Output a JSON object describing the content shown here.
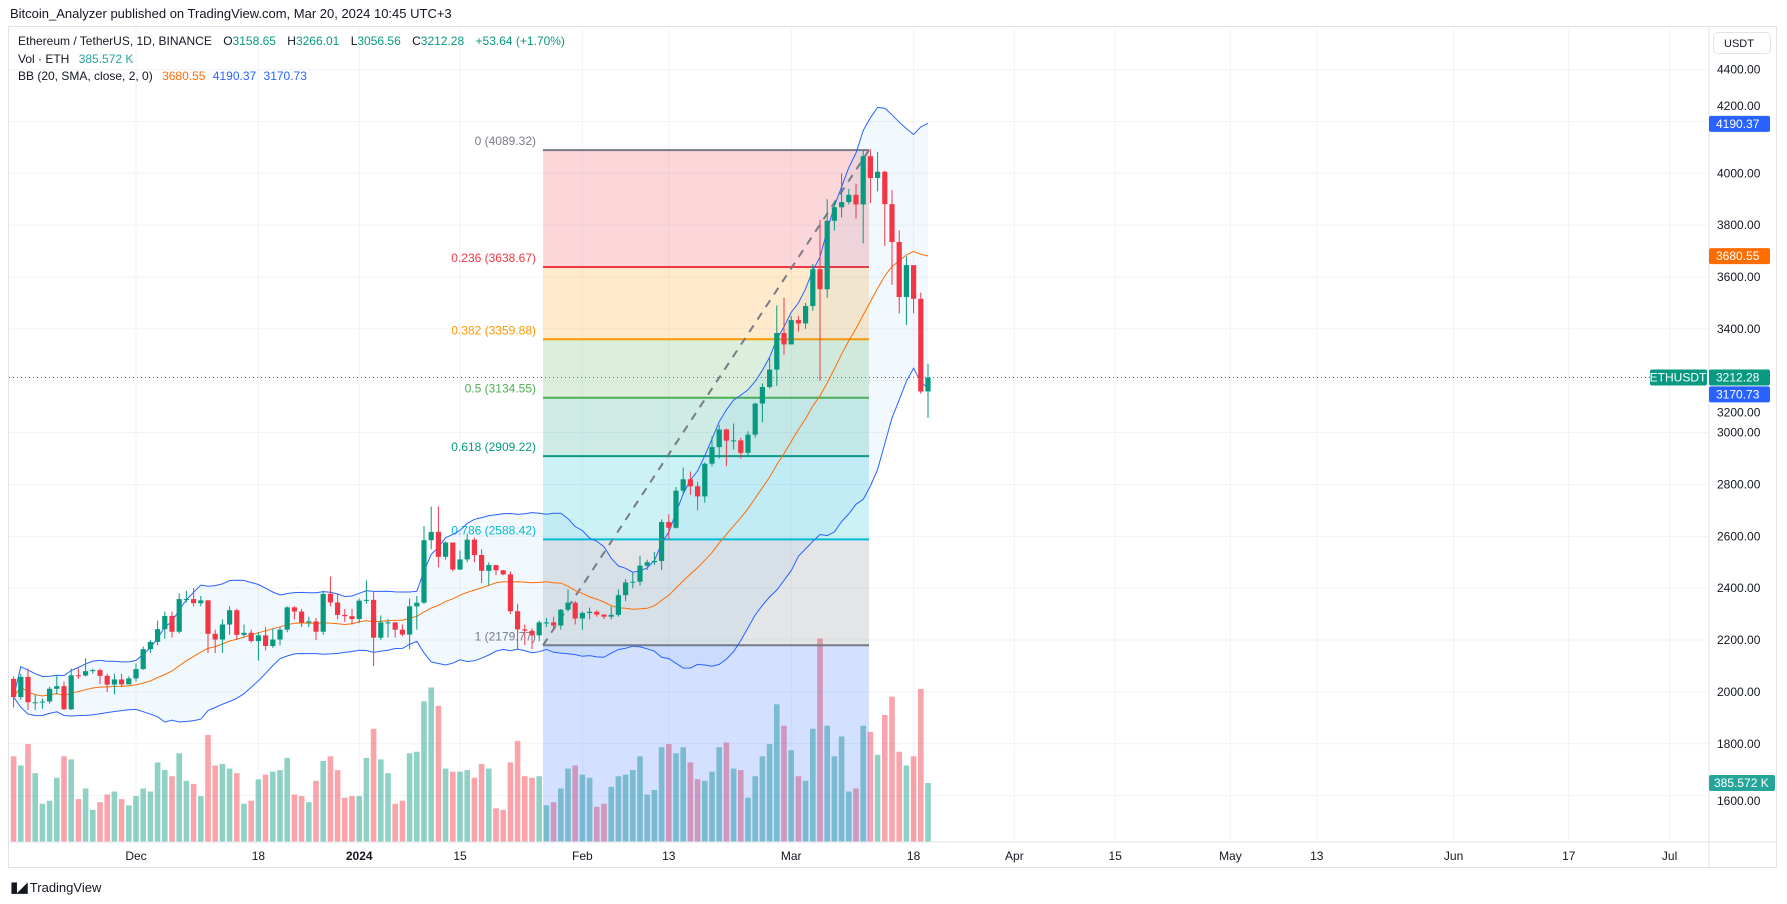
{
  "publisher": "Bitcoin_Analyzer published on TradingView.com, Mar 20, 2024 10:45 UTC+3",
  "legend": {
    "symbol": "Ethereum / TetherUS, 1D, BINANCE",
    "o_label": "O",
    "o": "3158.65",
    "h_label": "H",
    "h": "3266.01",
    "l_label": "L",
    "l": "3056.56",
    "c_label": "C",
    "c": "3212.28",
    "change": "+53.64 (+1.70%)",
    "vol_label": "Vol · ETH",
    "vol": "385.572 K",
    "bb_label": "BB (20, SMA, close, 2, 0)",
    "bb_basis": "3680.55",
    "bb_upper": "4190.37",
    "bb_lower": "3170.73"
  },
  "currency_button": "USDT",
  "footer": {
    "logo": "TV",
    "brand": "TradingView"
  },
  "colors": {
    "up": "#089981",
    "down": "#f23645",
    "bb_band": "#2962ff",
    "bb_basis": "#ff6d00",
    "vol_badge": "#26a69a"
  },
  "chart_data": {
    "type": "candlestick",
    "symbol": "ETHUSDT",
    "interval": "1D",
    "start_date": "2023-11-14",
    "first_open": 2050,
    "ylim": [
      1400,
      4480
    ],
    "y_ticks": [
      "4400.00",
      "4200.00",
      "4000.00",
      "3800.00",
      "3600.00",
      "3400.00",
      "3200.00",
      "3000.00",
      "2800.00",
      "2600.00",
      "2400.00",
      "2200.00",
      "2000.00",
      "1800.00",
      "1600.00"
    ],
    "x_ticks": [
      {
        "label": "Dec",
        "date": "2023-12-01"
      },
      {
        "label": "18",
        "date": "2023-12-18"
      },
      {
        "label": "2024",
        "date": "2024-01-01",
        "bold": true
      },
      {
        "label": "15",
        "date": "2024-01-15"
      },
      {
        "label": "Feb",
        "date": "2024-02-01"
      },
      {
        "label": "13",
        "date": "2024-02-13"
      },
      {
        "label": "Mar",
        "date": "2024-03-01"
      },
      {
        "label": "18",
        "date": "2024-03-18"
      },
      {
        "label": "Apr",
        "date": "2024-04-01"
      },
      {
        "label": "15",
        "date": "2024-04-15"
      },
      {
        "label": "May",
        "date": "2024-05-01"
      },
      {
        "label": "13",
        "date": "2024-05-13"
      },
      {
        "label": "Jun",
        "date": "2024-06-01"
      },
      {
        "label": "17",
        "date": "2024-06-17"
      },
      {
        "label": "Jul",
        "date": "2024-07-01"
      }
    ],
    "candles_hlcv": [
      [
        2060,
        1940,
        1980,
        560
      ],
      [
        2070,
        1970,
        2058,
        500
      ],
      [
        2090,
        1930,
        1960,
        640
      ],
      [
        1990,
        1930,
        1960,
        450
      ],
      [
        1975,
        1935,
        1963,
        250
      ],
      [
        2020,
        1955,
        2012,
        270
      ],
      [
        2065,
        1990,
        2022,
        420
      ],
      [
        2040,
        1930,
        1933,
        560
      ],
      [
        2090,
        1930,
        2064,
        540
      ],
      [
        2090,
        2050,
        2063,
        280
      ],
      [
        2130,
        2060,
        2080,
        350
      ],
      [
        2090,
        2070,
        2084,
        210
      ],
      [
        2090,
        2030,
        2062,
        260
      ],
      [
        2070,
        2000,
        2028,
        310
      ],
      [
        2070,
        1990,
        2048,
        330
      ],
      [
        2070,
        2020,
        2029,
        280
      ],
      [
        2060,
        2030,
        2052,
        240
      ],
      [
        2110,
        2040,
        2088,
        300
      ],
      [
        2175,
        2085,
        2165,
        350
      ],
      [
        2200,
        2150,
        2193,
        330
      ],
      [
        2275,
        2180,
        2242,
        520
      ],
      [
        2310,
        2205,
        2293,
        470
      ],
      [
        2310,
        2210,
        2232,
        430
      ],
      [
        2380,
        2225,
        2358,
        580
      ],
      [
        2390,
        2345,
        2358,
        400
      ],
      [
        2400,
        2330,
        2342,
        380
      ],
      [
        2370,
        2330,
        2353,
        300
      ],
      [
        2355,
        2150,
        2224,
        700
      ],
      [
        2240,
        2150,
        2202,
        500
      ],
      [
        2280,
        2150,
        2260,
        510
      ],
      [
        2330,
        2220,
        2315,
        480
      ],
      [
        2320,
        2200,
        2220,
        450
      ],
      [
        2260,
        2210,
        2228,
        250
      ],
      [
        2240,
        2190,
        2196,
        270
      ],
      [
        2230,
        2120,
        2218,
        410
      ],
      [
        2250,
        2160,
        2177,
        440
      ],
      [
        2245,
        2170,
        2202,
        460
      ],
      [
        2250,
        2180,
        2240,
        470
      ],
      [
        2330,
        2230,
        2326,
        550
      ],
      [
        2330,
        2280,
        2310,
        310
      ],
      [
        2320,
        2250,
        2267,
        300
      ],
      [
        2290,
        2250,
        2272,
        260
      ],
      [
        2285,
        2200,
        2232,
        400
      ],
      [
        2390,
        2220,
        2378,
        530
      ],
      [
        2445,
        2330,
        2345,
        560
      ],
      [
        2380,
        2280,
        2297,
        470
      ],
      [
        2320,
        2270,
        2292,
        290
      ],
      [
        2320,
        2260,
        2281,
        300
      ],
      [
        2360,
        2265,
        2352,
        300
      ],
      [
        2430,
        2340,
        2355,
        550
      ],
      [
        2385,
        2100,
        2209,
        740
      ],
      [
        2295,
        2200,
        2268,
        540
      ],
      [
        2280,
        2210,
        2268,
        450
      ],
      [
        2270,
        2210,
        2240,
        250
      ],
      [
        2260,
        2215,
        2221,
        270
      ],
      [
        2360,
        2165,
        2330,
        580
      ],
      [
        2370,
        2240,
        2344,
        590
      ],
      [
        2640,
        2340,
        2585,
        920
      ],
      [
        2715,
        2550,
        2617,
        1010
      ],
      [
        2715,
        2480,
        2521,
        890
      ],
      [
        2580,
        2510,
        2576,
        480
      ],
      [
        2575,
        2465,
        2472,
        460
      ],
      [
        2545,
        2470,
        2511,
        460
      ],
      [
        2610,
        2500,
        2587,
        470
      ],
      [
        2595,
        2500,
        2528,
        420
      ],
      [
        2550,
        2420,
        2467,
        510
      ],
      [
        2500,
        2410,
        2489,
        480
      ],
      [
        2490,
        2450,
        2469,
        220
      ],
      [
        2470,
        2450,
        2453,
        210
      ],
      [
        2465,
        2300,
        2311,
        520
      ],
      [
        2340,
        2165,
        2241,
        660
      ],
      [
        2260,
        2180,
        2236,
        430
      ],
      [
        2245,
        2165,
        2218,
        420
      ],
      [
        2275,
        2195,
        2268,
        430
      ],
      [
        2285,
        2250,
        2268,
        240
      ],
      [
        2290,
        2240,
        2256,
        260
      ],
      [
        2320,
        2240,
        2317,
        350
      ],
      [
        2395,
        2310,
        2344,
        480
      ],
      [
        2350,
        2260,
        2283,
        500
      ],
      [
        2310,
        2240,
        2304,
        440
      ],
      [
        2325,
        2280,
        2309,
        420
      ],
      [
        2315,
        2290,
        2298,
        230
      ],
      [
        2300,
        2280,
        2290,
        250
      ],
      [
        2330,
        2280,
        2297,
        360
      ],
      [
        2395,
        2290,
        2373,
        430
      ],
      [
        2435,
        2350,
        2422,
        440
      ],
      [
        2460,
        2400,
        2425,
        470
      ],
      [
        2525,
        2410,
        2487,
        560
      ],
      [
        2510,
        2470,
        2500,
        310
      ],
      [
        2540,
        2490,
        2505,
        340
      ],
      [
        2665,
        2470,
        2655,
        620
      ],
      [
        2685,
        2590,
        2633,
        640
      ],
      [
        2790,
        2630,
        2776,
        580
      ],
      [
        2865,
        2760,
        2820,
        620
      ],
      [
        2850,
        2760,
        2793,
        520
      ],
      [
        2810,
        2700,
        2754,
        410
      ],
      [
        2885,
        2730,
        2880,
        400
      ],
      [
        2985,
        2870,
        2944,
        460
      ],
      [
        3030,
        2900,
        3012,
        620
      ],
      [
        3015,
        2870,
        2969,
        650
      ],
      [
        3035,
        2935,
        2970,
        480
      ],
      [
        2980,
        2900,
        2922,
        470
      ],
      [
        3005,
        2910,
        2992,
        290
      ],
      [
        3115,
        2980,
        3112,
        430
      ],
      [
        3190,
        3040,
        3176,
        560
      ],
      [
        3288,
        3170,
        3243,
        640
      ],
      [
        3490,
        3180,
        3384,
        900
      ],
      [
        3520,
        3300,
        3340,
        760
      ],
      [
        3450,
        3340,
        3434,
        600
      ],
      [
        3450,
        3390,
        3421,
        430
      ],
      [
        3500,
        3400,
        3488,
        400
      ],
      [
        3650,
        3470,
        3630,
        740
      ],
      [
        3820,
        3200,
        3553,
        1330
      ],
      [
        3900,
        3520,
        3817,
        760
      ],
      [
        3890,
        3780,
        3869,
        560
      ],
      [
        4000,
        3830,
        3889,
        690
      ],
      [
        3940,
        3880,
        3917,
        330
      ],
      [
        3960,
        3825,
        3880,
        350
      ],
      [
        4090,
        3730,
        4066,
        760
      ],
      [
        4093,
        3885,
        3982,
        720
      ],
      [
        4083,
        3930,
        4006,
        570
      ],
      [
        4010,
        3720,
        3881,
        830
      ],
      [
        3935,
        3570,
        3735,
        950
      ],
      [
        3780,
        3460,
        3523,
        590
      ],
      [
        3680,
        3415,
        3646,
        500
      ],
      [
        3610,
        3460,
        3516,
        560
      ],
      [
        3540,
        3150,
        3158.65,
        1000
      ],
      [
        3266.01,
        3056.56,
        3212.28,
        385.572
      ]
    ],
    "volume_unit": "K ETH",
    "indicator": {
      "name": "BB",
      "length": 20,
      "ma": "SMA",
      "source": "close",
      "mult": 2,
      "offset": 0
    },
    "fibonacci": [
      {
        "level": "0",
        "price": 4089.32,
        "label": "0 (4089.32)",
        "color": "#787b86",
        "fill": "rgba(242,54,69,0.2)"
      },
      {
        "level": "0.236",
        "price": 3638.67,
        "label": "0.236 (3638.67)",
        "color": "#f23645",
        "fill": "rgba(255,152,0,0.2)"
      },
      {
        "level": "0.382",
        "price": 3359.88,
        "label": "0.382 (3359.88)",
        "color": "#ff9800",
        "fill": "rgba(76,175,80,0.2)"
      },
      {
        "level": "0.5",
        "price": 3134.55,
        "label": "0.5 (3134.55)",
        "color": "#4caf50",
        "fill": "rgba(8,153,129,0.2)"
      },
      {
        "level": "0.618",
        "price": 2909.22,
        "label": "0.618 (2909.22)",
        "color": "#089981",
        "fill": "rgba(0,188,212,0.2)"
      },
      {
        "level": "0.786",
        "price": 2588.42,
        "label": "0.786 (2588.42)",
        "color": "#00bcd4",
        "fill": "rgba(120,123,134,0.2)"
      },
      {
        "level": "1",
        "price": 2179.77,
        "label": "1 (2179.77)",
        "color": "#787b86",
        "fill": "rgba(41,98,255,0.2)"
      }
    ],
    "price_badges": [
      {
        "text": "4190.37",
        "price": 4190.37,
        "color": "#2962ff"
      },
      {
        "text": "3680.55",
        "price": 3680.55,
        "color": "#ff6d00"
      },
      {
        "text": "3212.28",
        "price": 3212.28,
        "color": "#089981",
        "tag": "ETHUSDT"
      },
      {
        "text": "3170.73",
        "price": 3170.73,
        "color": "#2962ff",
        "shift": 1
      }
    ],
    "volume_badge": {
      "text": "385.572 K",
      "color": "#26a69a"
    },
    "last_price": 3212.28
  }
}
